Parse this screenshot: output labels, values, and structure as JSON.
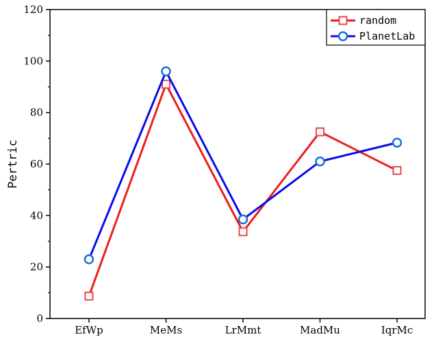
{
  "chart_data": {
    "type": "line",
    "categories": [
      "EfWp",
      "MeMs",
      "LrMmt",
      "MadMu",
      "IqrMc"
    ],
    "series": [
      {
        "name": "random",
        "values": [
          8.7,
          91.0,
          33.7,
          72.5,
          57.5
        ],
        "color": "#ee1c1c",
        "marker_color": "#e84848",
        "marker": "square"
      },
      {
        "name": "PlanetLab",
        "values": [
          23.0,
          96.0,
          38.5,
          61.0,
          68.3
        ],
        "color": "#0a0aee",
        "marker_color": "#1a6ed8",
        "marker": "circle"
      }
    ],
    "xlabel": "",
    "ylabel": "Pertric",
    "ylim": [
      0,
      120
    ],
    "yticks": [
      0,
      20,
      40,
      60,
      80,
      100,
      120
    ],
    "grid": false,
    "legend_position": "top-right"
  }
}
